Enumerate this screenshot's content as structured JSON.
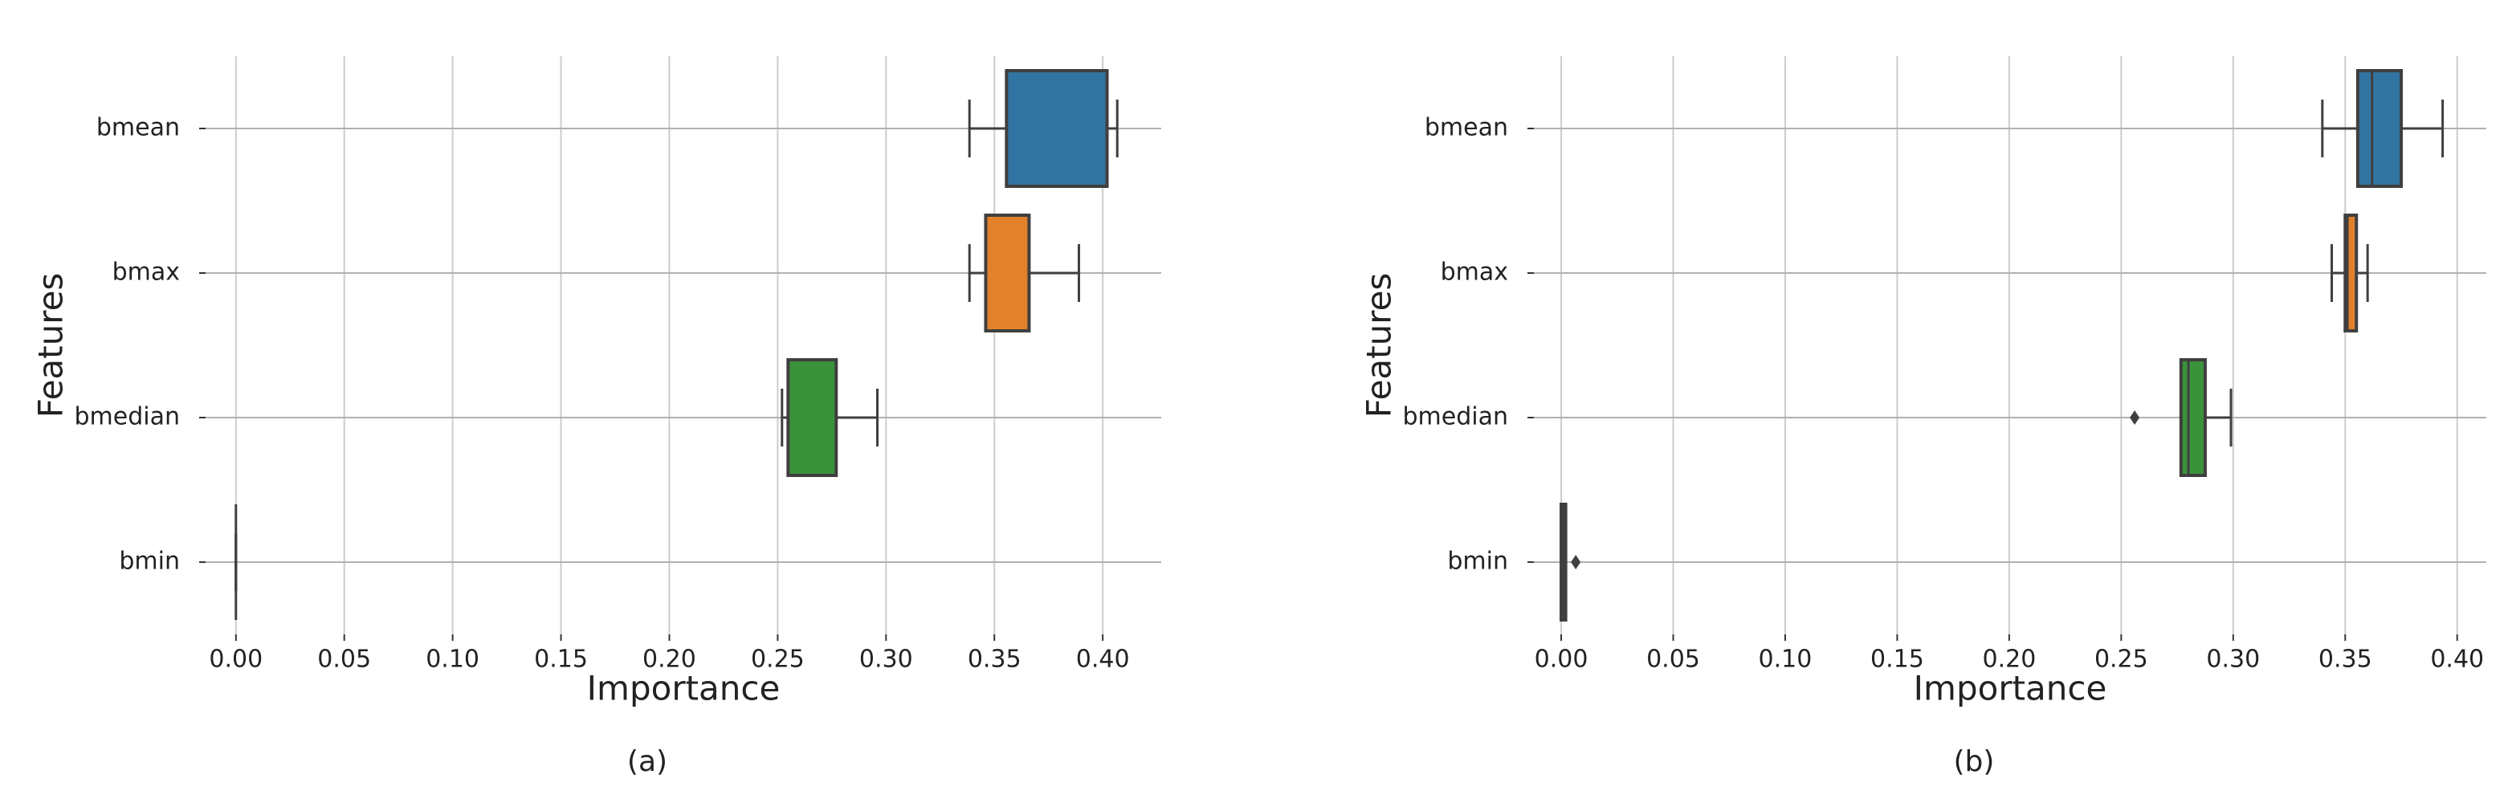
{
  "chart_data": [
    {
      "type": "box",
      "caption": "(a)",
      "xlabel": "Importance",
      "ylabel": "Features",
      "categories": [
        "bmean",
        "bmax",
        "bmedian",
        "bmin"
      ],
      "colors": [
        "#3274a1",
        "#e1812c",
        "#3a923a",
        "#c03d3e"
      ],
      "boxes": [
        {
          "min": 0.3385,
          "q1": 0.3556,
          "median": 0.3556,
          "q3": 0.402,
          "max": 0.4067,
          "outliers": []
        },
        {
          "min": 0.3385,
          "q1": 0.346,
          "median": 0.346,
          "q3": 0.366,
          "max": 0.389,
          "outliers": []
        },
        {
          "min": 0.252,
          "q1": 0.2548,
          "median": 0.2548,
          "q3": 0.277,
          "max": 0.296,
          "outliers": []
        },
        {
          "min": 0,
          "q1": 0,
          "median": 0,
          "q3": 0,
          "max": 0,
          "outliers": []
        }
      ],
      "xlim": [
        -0.014,
        0.427
      ],
      "xticks": [
        {
          "value": 0,
          "label": "0.00"
        },
        {
          "value": 0.05,
          "label": "0.05"
        },
        {
          "value": 0.1,
          "label": "0.10"
        },
        {
          "value": 0.15,
          "label": "0.15"
        },
        {
          "value": 0.2,
          "label": "0.20"
        },
        {
          "value": 0.25,
          "label": "0.25"
        },
        {
          "value": 0.3,
          "label": "0.30"
        },
        {
          "value": 0.35,
          "label": "0.35"
        },
        {
          "value": 0.4,
          "label": "0.40"
        }
      ],
      "grid": true
    },
    {
      "type": "box",
      "caption": "(b)",
      "xlabel": "Importance",
      "ylabel": "Features",
      "categories": [
        "bmean",
        "bmax",
        "bmedian",
        "bmin"
      ],
      "colors": [
        "#3274a1",
        "#e1812c",
        "#3a923a",
        "#c03d3e"
      ],
      "boxes": [
        {
          "min": 0.3398,
          "q1": 0.3556,
          "median": 0.362,
          "q3": 0.375,
          "max": 0.3935,
          "outliers": []
        },
        {
          "min": 0.344,
          "q1": 0.35,
          "median": 0.351,
          "q3": 0.355,
          "max": 0.36,
          "outliers": []
        },
        {
          "min": 0.2767,
          "q1": 0.2767,
          "median": 0.28,
          "q3": 0.2875,
          "max": 0.299,
          "outliers": [
            0.256
          ]
        },
        {
          "min": 0,
          "q1": 0,
          "median": 0.001,
          "q3": 0.002,
          "max": 0.002,
          "outliers": [
            0.0065
          ]
        }
      ],
      "xlim": [
        -0.0122,
        0.413
      ],
      "xticks": [
        {
          "value": 0,
          "label": "0.00"
        },
        {
          "value": 0.05,
          "label": "0.05"
        },
        {
          "value": 0.1,
          "label": "0.10"
        },
        {
          "value": 0.15,
          "label": "0.15"
        },
        {
          "value": 0.2,
          "label": "0.20"
        },
        {
          "value": 0.25,
          "label": "0.25"
        },
        {
          "value": 0.3,
          "label": "0.30"
        },
        {
          "value": 0.35,
          "label": "0.35"
        },
        {
          "value": 0.4,
          "label": "0.40"
        }
      ],
      "grid": true
    }
  ]
}
